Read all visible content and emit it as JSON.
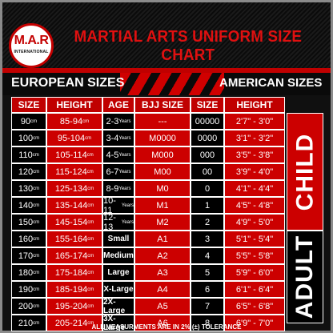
{
  "header": {
    "logo_main": "M.A.R",
    "logo_sub": "INTERNATIONAL",
    "title": "MARTIAL ARTS UNIFORM SIZE CHART"
  },
  "sections": {
    "european": "EUROPEAN SIZES",
    "american": "AMERICAN SIZES"
  },
  "columns": [
    "SIZE",
    "HEIGHT",
    "AGE",
    "BJJ SIZE",
    "SIZE",
    "HEIGHT"
  ],
  "units": {
    "cm": "cm",
    "years": "Years"
  },
  "groups": {
    "child": "CHILD",
    "adult": "ADULT"
  },
  "rows": [
    {
      "size": "90",
      "height": "85-94",
      "age": "2-3",
      "age_unit": true,
      "bjj": "---",
      "us_size": "00000",
      "us_height": "2'7\" - 3'0\""
    },
    {
      "size": "100",
      "height": "95-104",
      "age": "3-4",
      "age_unit": true,
      "bjj": "M0000",
      "us_size": "0000",
      "us_height": "3'1\" - 3'2\""
    },
    {
      "size": "110",
      "height": "105-114",
      "age": "4-5",
      "age_unit": true,
      "bjj": "M000",
      "us_size": "000",
      "us_height": "3'5\" - 3'8\""
    },
    {
      "size": "120",
      "height": "115-124",
      "age": "6-7",
      "age_unit": true,
      "bjj": "M00",
      "us_size": "00",
      "us_height": "3'9\" - 4'0\""
    },
    {
      "size": "130",
      "height": "125-134",
      "age": "8-9",
      "age_unit": true,
      "bjj": "M0",
      "us_size": "0",
      "us_height": "4'1\" - 4'4\""
    },
    {
      "size": "140",
      "height": "135-144",
      "age": "10-11",
      "age_unit": true,
      "bjj": "M1",
      "us_size": "1",
      "us_height": "4'5\" - 4'8\""
    },
    {
      "size": "150",
      "height": "145-154",
      "age": "12-13",
      "age_unit": true,
      "bjj": "M2",
      "us_size": "2",
      "us_height": "4'9\" - 5'0\""
    },
    {
      "size": "160",
      "height": "155-164",
      "age": "Small",
      "age_unit": false,
      "bjj": "A1",
      "us_size": "3",
      "us_height": "5'1\" - 5'4\""
    },
    {
      "size": "170",
      "height": "165-174",
      "age": "Medium",
      "age_unit": false,
      "bjj": "A2",
      "us_size": "4",
      "us_height": "5'5\" - 5'8\""
    },
    {
      "size": "180",
      "height": "175-184",
      "age": "Large",
      "age_unit": false,
      "bjj": "A3",
      "us_size": "5",
      "us_height": "5'9\" - 6'0\""
    },
    {
      "size": "190",
      "height": "185-194",
      "age": "X-Large",
      "age_unit": false,
      "bjj": "A4",
      "us_size": "6",
      "us_height": "6'1\" - 6'4\""
    },
    {
      "size": "200",
      "height": "195-204",
      "age": "2X-Large",
      "age_unit": false,
      "bjj": "A5",
      "us_size": "7",
      "us_height": "6'5\" - 6'8\""
    },
    {
      "size": "210",
      "height": "205-214",
      "age": "3X-Large",
      "age_unit": false,
      "bjj": "A6",
      "us_size": "8",
      "us_height": "6'9\" - 7'0\""
    }
  ],
  "footer": "ALL MEASURMENTS ARE IN 2% (±) TOLERANCE",
  "colors": {
    "accent": "#cc0000",
    "background": "#101010",
    "text": "#ffffff"
  }
}
